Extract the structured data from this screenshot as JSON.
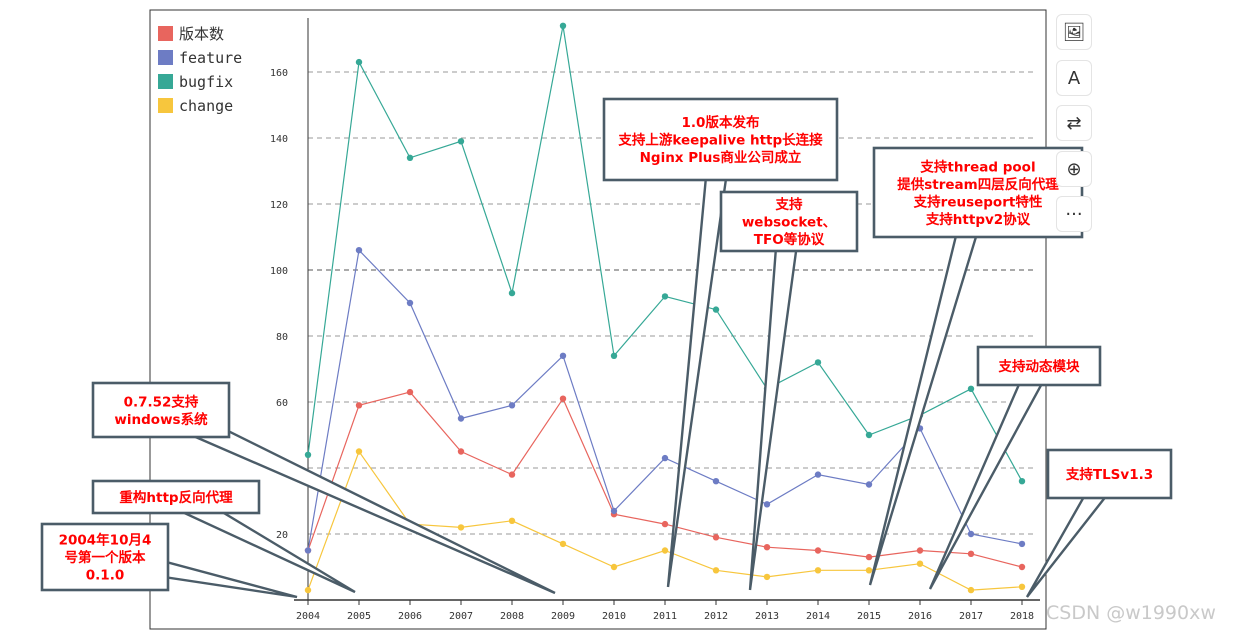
{
  "chart_data": {
    "type": "line",
    "x": [
      "2004",
      "2005",
      "2006",
      "2007",
      "2008",
      "2009",
      "2010",
      "2011",
      "2012",
      "2013",
      "2014",
      "2015",
      "2016",
      "2017",
      "2018"
    ],
    "ylim": [
      0,
      175
    ],
    "yticks": [
      20,
      40,
      60,
      80,
      100,
      120,
      140,
      160
    ],
    "grid": true,
    "legend_position": "top-left",
    "series": [
      {
        "name": "版本数",
        "color": "#e8655e",
        "values": [
          15,
          59,
          63,
          45,
          38,
          61,
          26,
          23,
          19,
          16,
          15,
          13,
          15,
          14,
          10
        ]
      },
      {
        "name": "feature",
        "color": "#6d7cc4",
        "values": [
          15,
          106,
          90,
          55,
          59,
          74,
          27,
          43,
          36,
          29,
          38,
          35,
          52,
          20,
          17
        ]
      },
      {
        "name": "bugfix",
        "color": "#36a896",
        "values": [
          44,
          163,
          134,
          139,
          93,
          174,
          74,
          92,
          88,
          64,
          72,
          50,
          56,
          64,
          36
        ]
      },
      {
        "name": "change",
        "color": "#f7c63d",
        "values": [
          3,
          45,
          23,
          22,
          24,
          17,
          10,
          15,
          9,
          7,
          9,
          9,
          11,
          3,
          4
        ]
      }
    ],
    "annotations": [
      {
        "lines": [
          "2004年10月4",
          "号第一个版本",
          "0.1.0"
        ]
      },
      {
        "lines": [
          "重构http反向代理"
        ]
      },
      {
        "lines": [
          "0.7.52支持",
          "windows系统"
        ]
      },
      {
        "lines": [
          "1.0版本发布",
          "支持上游keepalive http长连接",
          "Nginx Plus商业公司成立"
        ]
      },
      {
        "lines": [
          "支持",
          "websocket、",
          "TFO等协议"
        ]
      },
      {
        "lines": [
          "支持thread pool",
          "提供stream四层反向代理",
          "支持reuseport特性",
          "支持httpv2协议"
        ]
      },
      {
        "lines": [
          "支持动态模块"
        ]
      },
      {
        "lines": [
          "支持TLSv1.3"
        ]
      }
    ]
  },
  "toolbar": {
    "items": [
      {
        "icon": "image-edit-icon",
        "glyph": "🖼"
      },
      {
        "icon": "text-edit-icon",
        "glyph": "A"
      },
      {
        "icon": "convert-icon",
        "glyph": "⇄"
      },
      {
        "icon": "zoom-icon",
        "glyph": "⊕"
      },
      {
        "icon": "more-icon",
        "glyph": "···"
      }
    ]
  },
  "watermark": "CSDN @w1990xw"
}
